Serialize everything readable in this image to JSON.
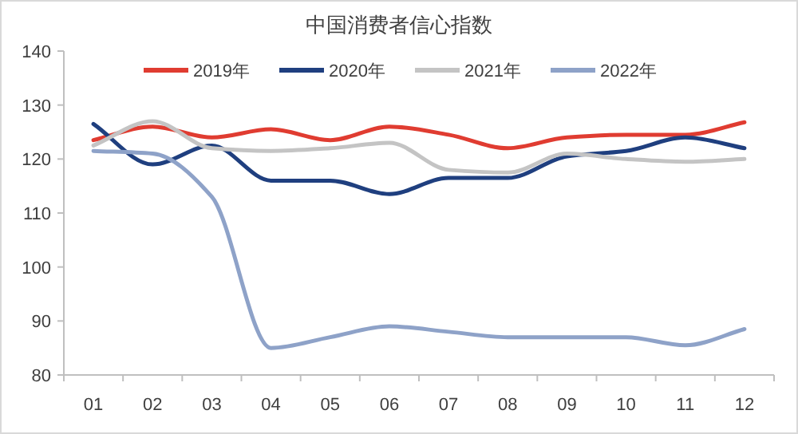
{
  "chart_data": {
    "type": "line",
    "title": "中国消费者信心指数",
    "categories": [
      "01",
      "02",
      "03",
      "04",
      "05",
      "06",
      "07",
      "08",
      "09",
      "10",
      "11",
      "12"
    ],
    "series": [
      {
        "name": "2019年",
        "color": "#e03c31",
        "values": [
          123.5,
          126,
          124,
          125.5,
          123.5,
          126,
          124.5,
          122,
          124,
          124.5,
          124.5,
          126.8
        ]
      },
      {
        "name": "2020年",
        "color": "#1f3f7f",
        "values": [
          126.5,
          119,
          122.5,
          116,
          116,
          113.5,
          116.5,
          116.5,
          120.5,
          121.5,
          124,
          122
        ]
      },
      {
        "name": "2021年",
        "color": "#c4c4c4",
        "values": [
          122.5,
          127,
          122,
          121.5,
          122,
          123,
          118,
          117.5,
          121,
          120,
          119.5,
          120
        ]
      },
      {
        "name": "2022年",
        "color": "#8ea2c8",
        "values": [
          121.5,
          121,
          113,
          85,
          87,
          89,
          88,
          87,
          87,
          87,
          85.5,
          88.5
        ]
      }
    ],
    "ylim": [
      80,
      140
    ],
    "yticks": [
      80,
      90,
      100,
      110,
      120,
      130,
      140
    ],
    "legend": "top",
    "grid": false,
    "marker": "none",
    "line_style": "solid"
  }
}
